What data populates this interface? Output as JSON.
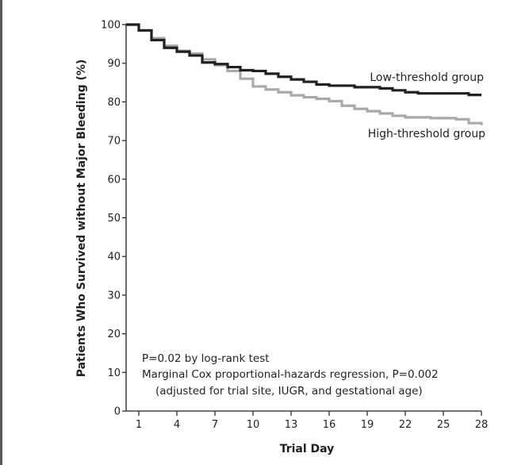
{
  "chart_data": {
    "type": "line",
    "title": "",
    "xlabel": "Trial Day",
    "ylabel": "Patients Who Survived without Major Bleeding (%)",
    "xlim": [
      0,
      28
    ],
    "ylim": [
      0,
      100
    ],
    "x_ticks": [
      1,
      4,
      7,
      10,
      13,
      16,
      19,
      22,
      25,
      28
    ],
    "y_ticks": [
      0,
      10,
      20,
      30,
      40,
      50,
      60,
      70,
      80,
      90,
      100
    ],
    "series": [
      {
        "name": "Low-threshold group",
        "color": "#231f20",
        "steps": [
          [
            0,
            100
          ],
          [
            1,
            98.5
          ],
          [
            2,
            96
          ],
          [
            3,
            94
          ],
          [
            4,
            93
          ],
          [
            5,
            92
          ],
          [
            6,
            90.2
          ],
          [
            7,
            89.8
          ],
          [
            8,
            89
          ],
          [
            9,
            88.2
          ],
          [
            10,
            88
          ],
          [
            11,
            87.3
          ],
          [
            12,
            86.5
          ],
          [
            13,
            85.8
          ],
          [
            14,
            85.2
          ],
          [
            15,
            84.5
          ],
          [
            16,
            84.2
          ],
          [
            18,
            83.8
          ],
          [
            20,
            83.5
          ],
          [
            21,
            83
          ],
          [
            22,
            82.5
          ],
          [
            23,
            82.2
          ],
          [
            27,
            81.8
          ],
          [
            28,
            81.8
          ]
        ]
      },
      {
        "name": "High-threshold group",
        "color": "#a7a9ac",
        "steps": [
          [
            0,
            100
          ],
          [
            1,
            98.5
          ],
          [
            2,
            96.5
          ],
          [
            3,
            94.5
          ],
          [
            4,
            93.2
          ],
          [
            5,
            92.5
          ],
          [
            6,
            91
          ],
          [
            7,
            89.5
          ],
          [
            8,
            88
          ],
          [
            9,
            86
          ],
          [
            10,
            84
          ],
          [
            11,
            83.2
          ],
          [
            12,
            82.5
          ],
          [
            13,
            81.7
          ],
          [
            14,
            81.2
          ],
          [
            15,
            80.8
          ],
          [
            16,
            80.2
          ],
          [
            17,
            79
          ],
          [
            18,
            78.2
          ],
          [
            19,
            77.6
          ],
          [
            20,
            77
          ],
          [
            21,
            76.4
          ],
          [
            22,
            76
          ],
          [
            24,
            75.8
          ],
          [
            26,
            75.5
          ],
          [
            27,
            74.5
          ],
          [
            28,
            74
          ]
        ]
      }
    ],
    "annotations": {
      "line1": "P=0.02 by log-rank test",
      "line2": "Marginal Cox proportional-hazards regression, P=0.002",
      "line3": "(adjusted for trial site, IUGR, and gestational age)"
    },
    "legend": "inline-right"
  }
}
